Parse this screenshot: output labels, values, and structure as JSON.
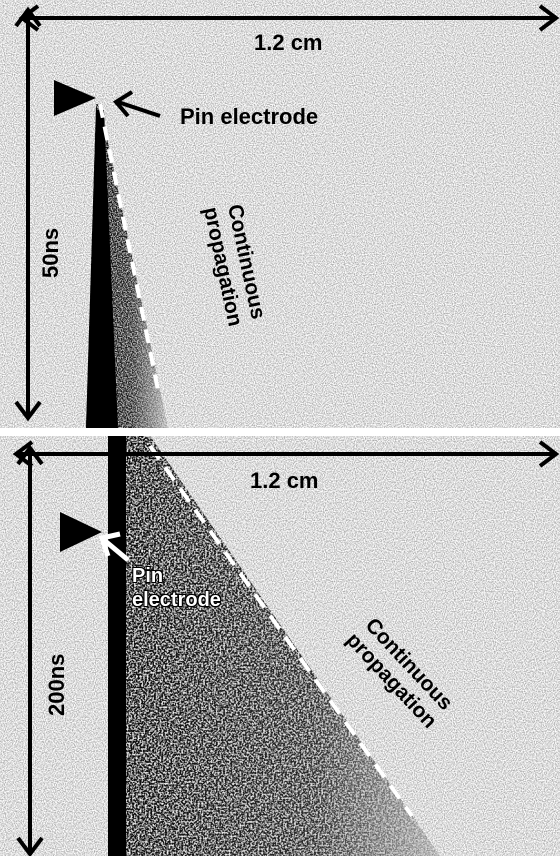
{
  "top_panel": {
    "width_label": "1.2 cm",
    "time_label": "50ns",
    "pin_label": "Pin electrode",
    "propagation_label_line1": "Continuous",
    "propagation_label_line2": "propagation"
  },
  "bottom_panel": {
    "width_label": "1.2 cm",
    "time_label": "200ns",
    "pin_label_line1": "Pin",
    "pin_label_line2": "electrode",
    "propagation_label_line1": "Continuous",
    "propagation_label_line2": "propagation"
  },
  "colors": {
    "background": "#ffffff",
    "streak": "#000000",
    "noise": "#888888",
    "dashed_line": "#ffffff"
  }
}
